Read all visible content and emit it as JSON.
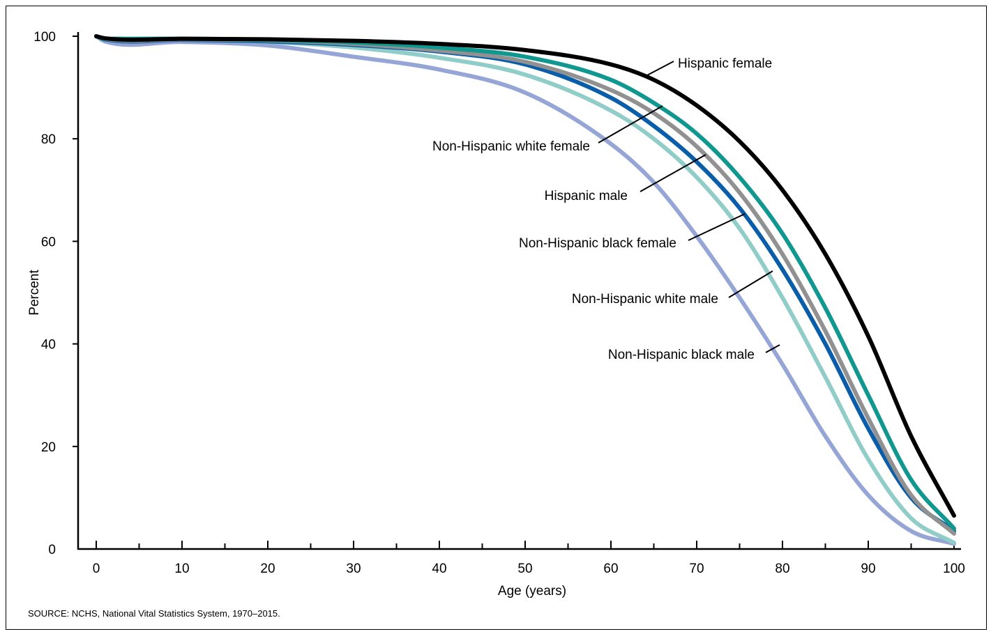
{
  "chart_data": {
    "type": "line",
    "title": "",
    "xlabel": "Age (years)",
    "ylabel": "Percent",
    "xlim": [
      0,
      100
    ],
    "ylim": [
      0,
      100
    ],
    "x_ticks": [
      0,
      10,
      20,
      30,
      40,
      50,
      60,
      70,
      80,
      90,
      100
    ],
    "y_ticks": [
      0,
      20,
      40,
      60,
      80,
      100
    ],
    "grid": false,
    "legend": "inline labels with leader lines",
    "x": [
      0,
      1,
      10,
      20,
      30,
      40,
      50,
      60,
      65,
      70,
      75,
      80,
      85,
      90,
      95,
      100
    ],
    "series": [
      {
        "name": "Non-Hispanic black male",
        "color": "#95a5d6",
        "values": [
          100,
          99.0,
          98.9,
          98.2,
          96.0,
          93.5,
          89.0,
          79.0,
          71.5,
          61.0,
          49.0,
          36.0,
          22.0,
          10.5,
          3.5,
          1.0
        ]
      },
      {
        "name": "Non-Hispanic white male",
        "color": "#91cdc8",
        "values": [
          100,
          99.4,
          99.3,
          98.9,
          97.8,
          95.8,
          92.5,
          85.5,
          80.0,
          72.5,
          62.5,
          49.0,
          33.5,
          17.5,
          6.0,
          1.2
        ]
      },
      {
        "name": "Non-Hispanic black female",
        "color": "#0a5ea9",
        "values": [
          100,
          99.4,
          99.3,
          99.0,
          98.3,
          97.0,
          94.5,
          88.0,
          82.5,
          75.5,
          66.5,
          54.5,
          40.0,
          23.5,
          10.0,
          3.5
        ]
      },
      {
        "name": "Hispanic male",
        "color": "#919191",
        "values": [
          100,
          99.5,
          99.4,
          99.2,
          98.5,
          97.2,
          95.0,
          89.5,
          85.0,
          78.5,
          69.5,
          57.5,
          42.5,
          25.5,
          10.5,
          3.0
        ]
      },
      {
        "name": "Non-Hispanic white female",
        "color": "#109890",
        "values": [
          100,
          99.5,
          99.5,
          99.3,
          98.8,
          97.8,
          96.0,
          91.5,
          87.0,
          81.0,
          72.5,
          61.5,
          47.0,
          30.0,
          13.5,
          4.0
        ]
      },
      {
        "name": "Hispanic female",
        "color": "#000000",
        "values": [
          100,
          99.6,
          99.5,
          99.4,
          99.1,
          98.5,
          97.3,
          94.5,
          91.5,
          86.5,
          79.5,
          70.0,
          57.5,
          41.5,
          22.0,
          6.5
        ]
      }
    ],
    "source": "SOURCE: NCHS, National Vital Statistics System, 1970–2015."
  }
}
